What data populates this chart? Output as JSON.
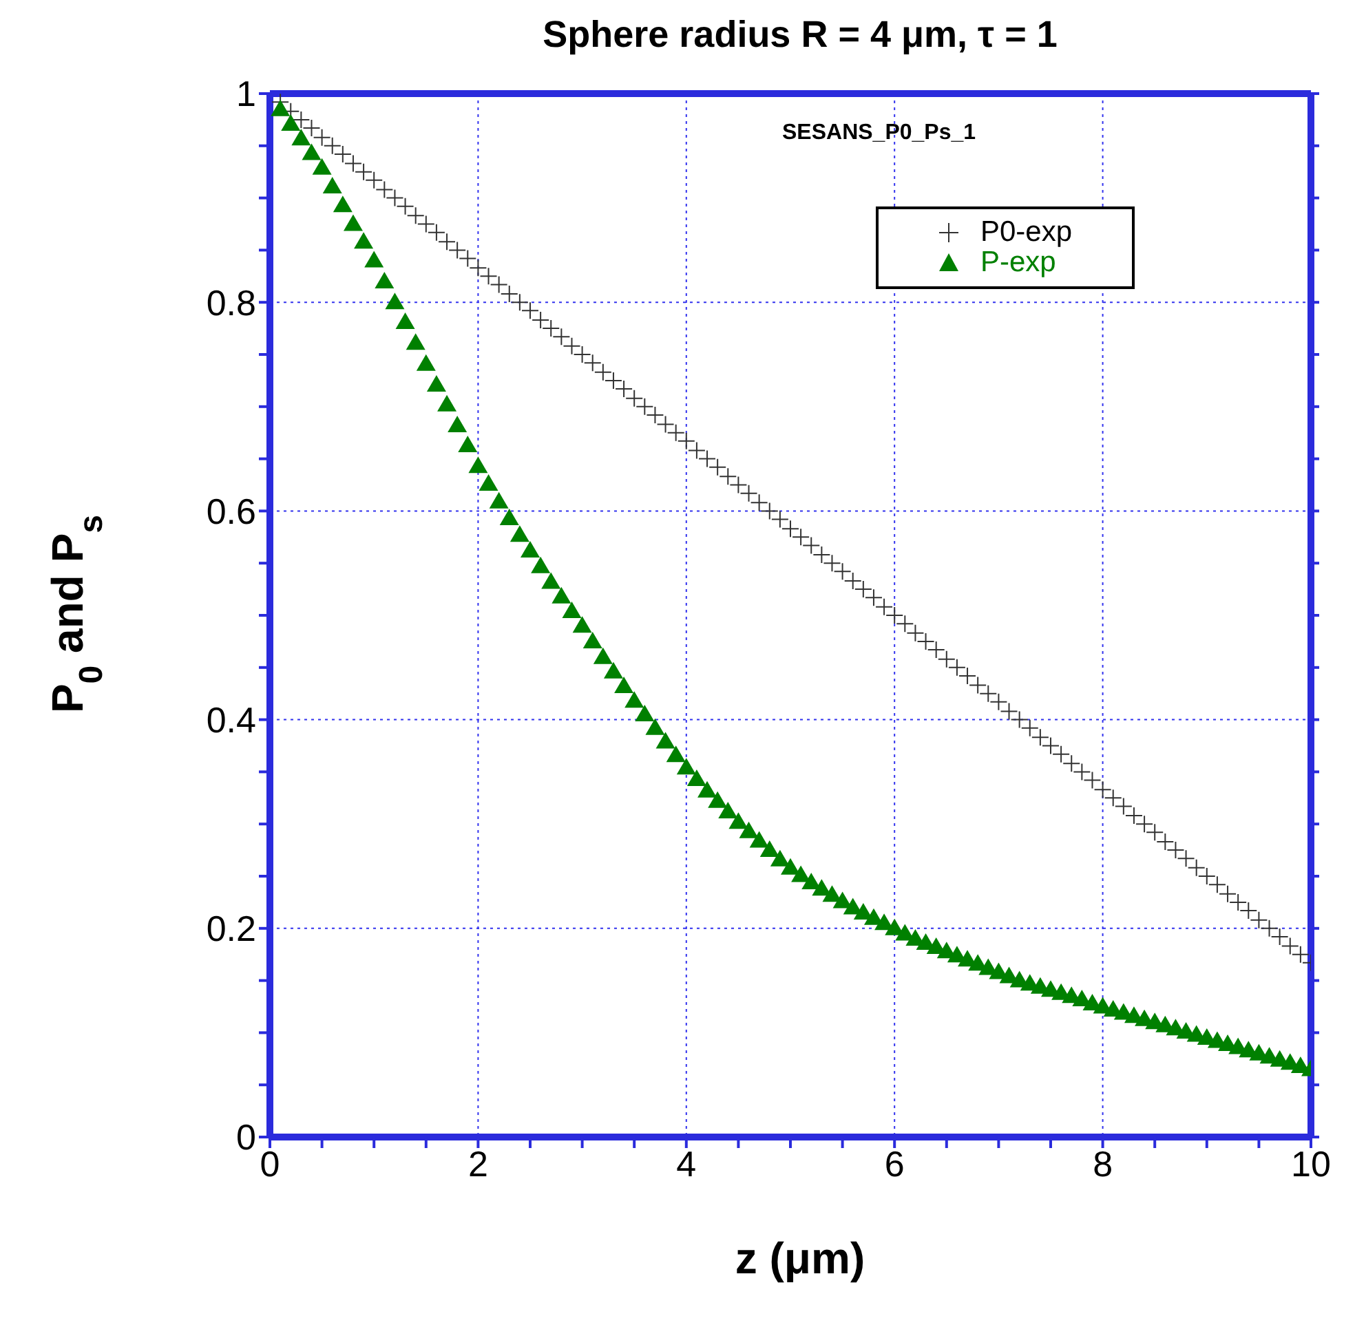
{
  "chart_data": {
    "type": "scatter",
    "title": "Sphere radius R = 4 μm, τ = 1",
    "xlabel": "z (μm)",
    "ylabel": "P$_{0}$ and P$_{s}$",
    "annotations": [
      "SESANS_P0_Ps_1"
    ],
    "x": [
      0.1,
      0.2,
      0.3,
      0.4,
      0.5,
      0.6,
      0.7,
      0.8,
      0.9,
      1.0,
      1.1,
      1.2,
      1.3,
      1.4,
      1.5,
      1.6,
      1.7,
      1.8,
      1.9,
      2.0,
      2.1,
      2.2,
      2.3,
      2.4,
      2.5,
      2.6,
      2.7,
      2.8,
      2.9,
      3.0,
      3.1,
      3.2,
      3.3,
      3.4,
      3.5,
      3.6,
      3.7,
      3.8,
      3.9,
      4.0,
      4.1,
      4.2,
      4.3,
      4.4,
      4.5,
      4.6,
      4.7,
      4.8,
      4.9,
      5.0,
      5.1,
      5.2,
      5.3,
      5.4,
      5.5,
      5.6,
      5.7,
      5.8,
      5.9,
      6.0,
      6.1,
      6.2,
      6.3,
      6.4,
      6.5,
      6.6,
      6.7,
      6.8,
      6.9,
      7.0,
      7.1,
      7.2,
      7.3,
      7.4,
      7.5,
      7.6,
      7.7,
      7.8,
      7.9,
      8.0,
      8.1,
      8.2,
      8.3,
      8.4,
      8.5,
      8.6,
      8.7,
      8.8,
      8.9,
      9.0,
      9.1,
      9.2,
      9.3,
      9.4,
      9.5,
      9.6,
      9.7,
      9.8,
      9.9,
      10.0
    ],
    "series": [
      {
        "name": "P0-exp",
        "color": "#333333",
        "marker": "cross",
        "values": [
          0.992,
          0.983,
          0.975,
          0.967,
          0.958,
          0.95,
          0.942,
          0.933,
          0.925,
          0.917,
          0.908,
          0.9,
          0.892,
          0.883,
          0.875,
          0.867,
          0.858,
          0.85,
          0.842,
          0.833,
          0.825,
          0.817,
          0.808,
          0.8,
          0.792,
          0.783,
          0.775,
          0.767,
          0.758,
          0.75,
          0.742,
          0.733,
          0.725,
          0.717,
          0.708,
          0.7,
          0.692,
          0.683,
          0.675,
          0.667,
          0.658,
          0.65,
          0.642,
          0.633,
          0.625,
          0.617,
          0.608,
          0.6,
          0.592,
          0.583,
          0.575,
          0.567,
          0.558,
          0.55,
          0.542,
          0.533,
          0.525,
          0.517,
          0.508,
          0.5,
          0.492,
          0.483,
          0.475,
          0.467,
          0.458,
          0.45,
          0.442,
          0.433,
          0.425,
          0.417,
          0.408,
          0.4,
          0.392,
          0.383,
          0.375,
          0.367,
          0.358,
          0.35,
          0.342,
          0.333,
          0.325,
          0.317,
          0.308,
          0.3,
          0.292,
          0.283,
          0.275,
          0.267,
          0.258,
          0.25,
          0.242,
          0.233,
          0.225,
          0.217,
          0.208,
          0.2,
          0.192,
          0.183,
          0.175,
          0.167
        ]
      },
      {
        "name": "P-exp",
        "color": "#008000",
        "marker": "triangle",
        "values": [
          0.985,
          0.971,
          0.957,
          0.943,
          0.929,
          0.911,
          0.893,
          0.875,
          0.858,
          0.84,
          0.82,
          0.8,
          0.781,
          0.761,
          0.741,
          0.721,
          0.702,
          0.682,
          0.663,
          0.643,
          0.626,
          0.609,
          0.593,
          0.577,
          0.562,
          0.547,
          0.532,
          0.518,
          0.504,
          0.49,
          0.475,
          0.46,
          0.446,
          0.432,
          0.418,
          0.405,
          0.392,
          0.379,
          0.366,
          0.354,
          0.343,
          0.332,
          0.322,
          0.312,
          0.302,
          0.293,
          0.284,
          0.275,
          0.266,
          0.258,
          0.251,
          0.244,
          0.238,
          0.232,
          0.226,
          0.22,
          0.215,
          0.21,
          0.205,
          0.2,
          0.195,
          0.19,
          0.186,
          0.182,
          0.178,
          0.174,
          0.17,
          0.166,
          0.162,
          0.158,
          0.154,
          0.15,
          0.147,
          0.144,
          0.141,
          0.138,
          0.135,
          0.132,
          0.128,
          0.125,
          0.122,
          0.119,
          0.116,
          0.113,
          0.11,
          0.107,
          0.104,
          0.101,
          0.098,
          0.095,
          0.092,
          0.089,
          0.086,
          0.083,
          0.08,
          0.077,
          0.074,
          0.071,
          0.068,
          0.065
        ]
      }
    ],
    "xlim": [
      0,
      10
    ],
    "xticks": [
      0,
      {
        "value": 0.5,
        "label": null
      },
      {
        "value": 1,
        "label": null
      },
      {
        "value": 1.5,
        "label": null
      },
      2,
      {
        "value": 2.5,
        "label": null
      },
      {
        "value": 3,
        "label": null
      },
      {
        "value": 3.5,
        "label": null
      },
      4,
      {
        "value": 4.5,
        "label": null
      },
      {
        "value": 5,
        "label": null
      },
      {
        "value": 5.5,
        "label": null
      },
      6,
      {
        "value": 6.5,
        "label": null
      },
      {
        "value": 7,
        "label": null
      },
      {
        "value": 7.5,
        "label": null
      },
      8,
      {
        "value": 8.5,
        "label": null
      },
      {
        "value": 9,
        "label": null
      },
      {
        "value": 9.5,
        "label": null
      },
      10
    ],
    "ylim": [
      0,
      1
    ],
    "yticks": [
      0,
      {
        "value": 0.05,
        "label": null
      },
      {
        "value": 0.1,
        "label": null
      },
      {
        "value": 0.15,
        "label": null
      },
      0.2,
      {
        "value": 0.25,
        "label": null
      },
      {
        "value": 0.3,
        "label": null
      },
      {
        "value": 0.35,
        "label": null
      },
      0.4,
      {
        "value": 0.45,
        "label": null
      },
      {
        "value": 0.5,
        "label": null
      },
      {
        "value": 0.55,
        "label": null
      },
      0.6,
      {
        "value": 0.65,
        "label": null
      },
      {
        "value": 0.7,
        "label": null
      },
      {
        "value": 0.75,
        "label": null
      },
      0.8,
      {
        "value": 0.85,
        "label": null
      },
      {
        "value": 0.9,
        "label": null
      },
      {
        "value": 0.95,
        "label": null
      },
      1
    ],
    "grid": true,
    "legend": "top right"
  }
}
